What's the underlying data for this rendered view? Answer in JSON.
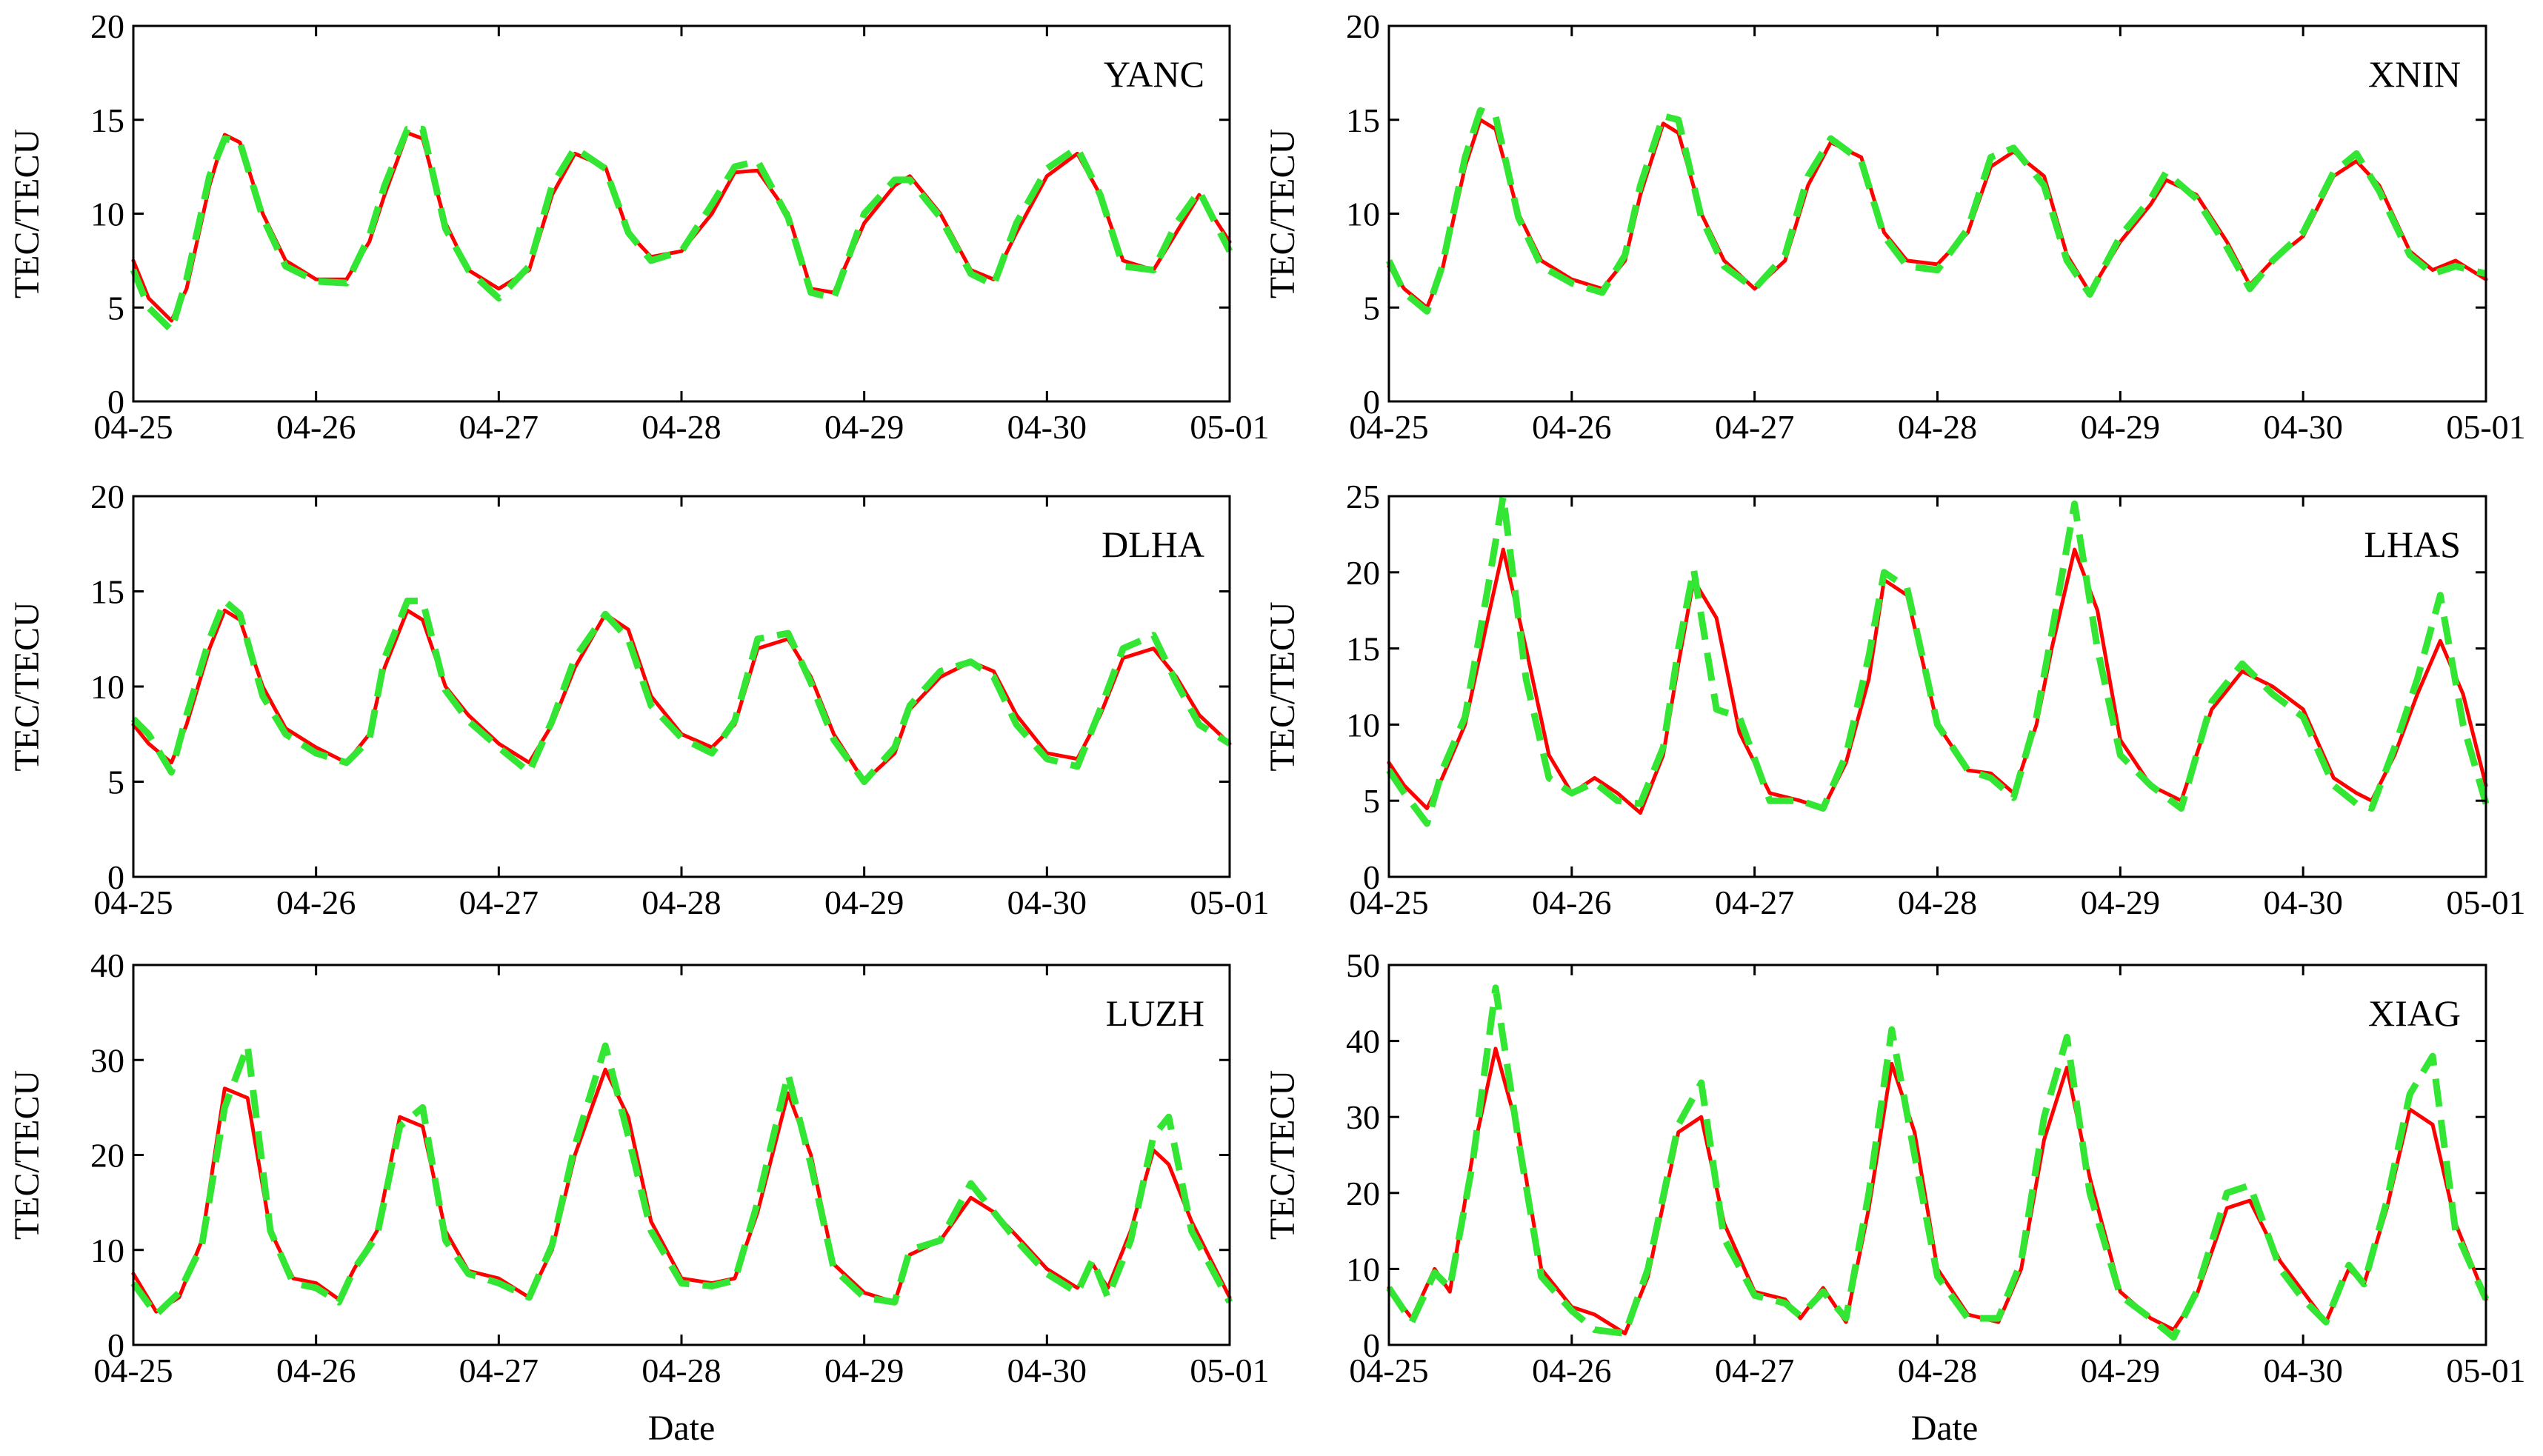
{
  "figure": {
    "colors": {
      "observed": "#ff0000",
      "model": "#33e633"
    },
    "bottom_xlabel": "Date"
  },
  "chart_data": [
    {
      "type": "line",
      "station": "YANC",
      "ylabel": "TEC/TECU",
      "x_ticks": [
        "04-25",
        "04-26",
        "04-27",
        "04-28",
        "04-29",
        "04-30",
        "05-01"
      ],
      "xlim": [
        "04-25 00:00",
        "05-01 00:00"
      ],
      "ylim": [
        0,
        20
      ],
      "y_ticks": [
        0,
        5,
        10,
        15,
        20
      ],
      "x": [
        "04-25 00:00",
        "04-25 02:00",
        "04-25 05:00",
        "04-25 07:00",
        "04-25 10:00",
        "04-25 12:00",
        "04-25 14:00",
        "04-25 17:00",
        "04-25 20:00",
        "04-26 00:00",
        "04-26 04:00",
        "04-26 07:00",
        "04-26 09:00",
        "04-26 12:00",
        "04-26 14:00",
        "04-26 17:00",
        "04-26 20:00",
        "04-27 00:00",
        "04-27 04:00",
        "04-27 07:00",
        "04-27 10:00",
        "04-27 14:00",
        "04-27 17:00",
        "04-27 20:00",
        "04-28 00:00",
        "04-28 04:00",
        "04-28 07:00",
        "04-28 10:00",
        "04-28 14:00",
        "04-28 17:00",
        "04-28 20:00",
        "04-29 00:00",
        "04-29 04:00",
        "04-29 06:00",
        "04-29 10:00",
        "04-29 14:00",
        "04-29 17:00",
        "04-29 20:00",
        "04-30 00:00",
        "04-30 04:00",
        "04-30 07:00",
        "04-30 10:00",
        "04-30 14:00",
        "04-30 17:00",
        "04-30 20:00",
        "05-01 00:00"
      ],
      "series": [
        {
          "role": "observed",
          "values": [
            7.5,
            5.5,
            4.3,
            6,
            11.5,
            14.2,
            13.8,
            10,
            7.5,
            6.5,
            6.5,
            8.5,
            11,
            14.3,
            14,
            9.5,
            7,
            6,
            7,
            11,
            13.2,
            12.5,
            9,
            7.7,
            8,
            10,
            12.2,
            12.3,
            10,
            6,
            5.8,
            9.5,
            11.5,
            12,
            10,
            7,
            6.5,
            9,
            12,
            13.2,
            11,
            7.5,
            7,
            9,
            11,
            8.5
          ]
        },
        {
          "role": "model",
          "values": [
            7,
            5,
            3.8,
            6.5,
            12,
            14,
            13.8,
            9.8,
            7.2,
            6.4,
            6.3,
            8.8,
            11.5,
            14.5,
            14.5,
            9.2,
            7,
            5.5,
            7.2,
            11.5,
            13.5,
            12.4,
            9,
            7.5,
            8,
            10.5,
            12.5,
            12.8,
            9.8,
            5.8,
            5.5,
            10,
            11.8,
            11.8,
            9.8,
            6.8,
            6.2,
            9.5,
            12.4,
            13.5,
            11,
            7.2,
            7,
            9.5,
            11.2,
            8
          ]
        }
      ]
    },
    {
      "type": "line",
      "station": "XNIN",
      "ylabel": "TEC/TECU",
      "x_ticks": [
        "04-25",
        "04-26",
        "04-27",
        "04-28",
        "04-29",
        "04-30",
        "05-01"
      ],
      "xlim": [
        "04-25 00:00",
        "05-01 00:00"
      ],
      "ylim": [
        0,
        20
      ],
      "y_ticks": [
        0,
        5,
        10,
        15,
        20
      ],
      "x": [
        "04-25 00:00",
        "04-25 02:00",
        "04-25 05:00",
        "04-25 07:00",
        "04-25 10:00",
        "04-25 12:00",
        "04-25 14:00",
        "04-25 17:00",
        "04-25 20:00",
        "04-26 00:00",
        "04-26 04:00",
        "04-26 07:00",
        "04-26 09:00",
        "04-26 12:00",
        "04-26 14:00",
        "04-26 17:00",
        "04-26 20:00",
        "04-27 00:00",
        "04-27 04:00",
        "04-27 07:00",
        "04-27 10:00",
        "04-27 14:00",
        "04-27 17:00",
        "04-27 20:00",
        "04-28 00:00",
        "04-28 04:00",
        "04-28 07:00",
        "04-28 10:00",
        "04-28 14:00",
        "04-28 17:00",
        "04-28 20:00",
        "04-29 00:00",
        "04-29 04:00",
        "04-29 06:00",
        "04-29 10:00",
        "04-29 14:00",
        "04-29 17:00",
        "04-29 20:00",
        "04-30 00:00",
        "04-30 04:00",
        "04-30 07:00",
        "04-30 10:00",
        "04-30 14:00",
        "04-30 17:00",
        "04-30 20:00",
        "05-01 00:00"
      ],
      "series": [
        {
          "role": "observed",
          "values": [
            7.2,
            6,
            5,
            7,
            12.5,
            15,
            14.5,
            10,
            7.5,
            6.5,
            6,
            7.5,
            11,
            14.8,
            14.3,
            10,
            7.5,
            6,
            7.5,
            11.5,
            13.8,
            13,
            9,
            7.5,
            7.3,
            9,
            12.5,
            13.3,
            12,
            7.8,
            5.8,
            8.5,
            10.5,
            11.8,
            11,
            8.5,
            6.2,
            7.5,
            8.8,
            12,
            12.8,
            11.5,
            8,
            7,
            7.5,
            6.5
          ]
        },
        {
          "role": "model",
          "values": [
            7.5,
            5.8,
            4.8,
            7.2,
            13,
            15.5,
            15.2,
            9.8,
            7.2,
            6.3,
            5.8,
            7.8,
            11.5,
            15.2,
            15,
            9.8,
            7.2,
            6,
            7.8,
            12,
            14,
            12.8,
            8.8,
            7.2,
            7,
            9.2,
            13,
            13.5,
            11.5,
            7.5,
            5.7,
            8.8,
            10.8,
            12.2,
            10.8,
            8.2,
            6,
            7.5,
            9,
            12.2,
            13.2,
            11.2,
            7.8,
            6.8,
            7.2,
            6.8
          ]
        }
      ]
    },
    {
      "type": "line",
      "station": "DLHA",
      "ylabel": "TEC/TECU",
      "x_ticks": [
        "04-25",
        "04-26",
        "04-27",
        "04-28",
        "04-29",
        "04-30",
        "05-01"
      ],
      "xlim": [
        "04-25 00:00",
        "05-01 00:00"
      ],
      "ylim": [
        0,
        20
      ],
      "y_ticks": [
        0,
        5,
        10,
        15,
        20
      ],
      "x": [
        "04-25 00:00",
        "04-25 02:00",
        "04-25 05:00",
        "04-25 07:00",
        "04-25 10:00",
        "04-25 12:00",
        "04-25 14:00",
        "04-25 17:00",
        "04-25 20:00",
        "04-26 00:00",
        "04-26 04:00",
        "04-26 07:00",
        "04-26 09:00",
        "04-26 12:00",
        "04-26 14:00",
        "04-26 17:00",
        "04-26 20:00",
        "04-27 00:00",
        "04-27 04:00",
        "04-27 07:00",
        "04-27 10:00",
        "04-27 14:00",
        "04-27 17:00",
        "04-27 20:00",
        "04-28 00:00",
        "04-28 04:00",
        "04-28 07:00",
        "04-28 10:00",
        "04-28 14:00",
        "04-28 17:00",
        "04-28 20:00",
        "04-29 00:00",
        "04-29 04:00",
        "04-29 06:00",
        "04-29 10:00",
        "04-29 14:00",
        "04-29 17:00",
        "04-29 20:00",
        "04-30 00:00",
        "04-30 04:00",
        "04-30 07:00",
        "04-30 10:00",
        "04-30 14:00",
        "04-30 17:00",
        "04-30 20:00",
        "05-01 00:00"
      ],
      "series": [
        {
          "role": "observed",
          "values": [
            8,
            7,
            6,
            8,
            12,
            14,
            13.5,
            10,
            7.8,
            6.8,
            6,
            7.5,
            11,
            14,
            13.5,
            10,
            8.5,
            7,
            6,
            8,
            11,
            13.8,
            13,
            9.5,
            7.5,
            6.8,
            8,
            12,
            12.5,
            10.5,
            7.5,
            5,
            6.5,
            8.8,
            10.5,
            11.3,
            10.8,
            8.5,
            6.5,
            6.2,
            8.5,
            11.5,
            12,
            10.5,
            8.5,
            7
          ]
        },
        {
          "role": "model",
          "values": [
            8.3,
            7.5,
            5.5,
            8.5,
            12.5,
            14.5,
            13.8,
            9.5,
            7.5,
            6.5,
            6,
            7.2,
            11.5,
            14.5,
            14.5,
            9.8,
            8.2,
            6.8,
            5.5,
            8.2,
            11.5,
            13.8,
            12.5,
            9,
            7.3,
            6.5,
            8.2,
            12.5,
            12.8,
            10.2,
            7.2,
            5,
            6.8,
            9,
            10.8,
            11.3,
            10.5,
            8,
            6.2,
            5.8,
            8.8,
            12,
            12.7,
            10.2,
            8,
            7
          ]
        }
      ]
    },
    {
      "type": "line",
      "station": "LHAS",
      "ylabel": "TEC/TECU",
      "x_ticks": [
        "04-25",
        "04-26",
        "04-27",
        "04-28",
        "04-29",
        "04-30",
        "05-01"
      ],
      "xlim": [
        "04-25 00:00",
        "05-01 00:00"
      ],
      "ylim": [
        0,
        25
      ],
      "y_ticks": [
        0,
        5,
        10,
        15,
        20,
        25
      ],
      "x": [
        "04-25 00:00",
        "04-25 02:00",
        "04-25 05:00",
        "04-25 07:00",
        "04-25 10:00",
        "04-25 13:00",
        "04-25 15:00",
        "04-25 18:00",
        "04-25 21:00",
        "04-26 00:00",
        "04-26 03:00",
        "04-26 06:00",
        "04-26 09:00",
        "04-26 12:00",
        "04-26 14:00",
        "04-26 16:00",
        "04-26 19:00",
        "04-26 22:00",
        "04-27 02:00",
        "04-27 06:00",
        "04-27 09:00",
        "04-27 12:00",
        "04-27 15:00",
        "04-27 17:00",
        "04-27 20:00",
        "04-28 00:00",
        "04-28 04:00",
        "04-28 07:00",
        "04-28 10:00",
        "04-28 13:00",
        "04-28 15:00",
        "04-28 18:00",
        "04-28 21:00",
        "04-29 00:00",
        "04-29 04:00",
        "04-29 08:00",
        "04-29 12:00",
        "04-29 16:00",
        "04-29 20:00",
        "04-30 00:00",
        "04-30 04:00",
        "04-30 07:00",
        "04-30 09:00",
        "04-30 12:00",
        "04-30 15:00",
        "04-30 18:00",
        "04-30 21:00",
        "05-01 00:00"
      ],
      "series": [
        {
          "role": "observed",
          "values": [
            7.5,
            6,
            4.5,
            6.5,
            10,
            17,
            21.5,
            15,
            8,
            5.5,
            6.5,
            5.5,
            4.2,
            8,
            14,
            19.5,
            17,
            9.5,
            5.5,
            5,
            4.5,
            7.5,
            13,
            19.5,
            18.5,
            10,
            7,
            6.8,
            5.5,
            10,
            15,
            21.5,
            17.5,
            9,
            6,
            5,
            11,
            13.5,
            12.5,
            11,
            6.5,
            5.5,
            5,
            8,
            12,
            15.5,
            12,
            6
          ]
        },
        {
          "role": "model",
          "values": [
            7,
            5.5,
            3.5,
            7,
            10.5,
            19,
            25,
            13,
            6.5,
            5.5,
            6.2,
            5,
            4.8,
            8.5,
            15,
            20.2,
            11,
            10.5,
            5,
            5,
            4.5,
            8,
            14.5,
            20,
            19,
            10,
            7,
            6.5,
            5.2,
            10.5,
            16,
            24.5,
            15,
            8,
            6,
            4.5,
            11.5,
            14,
            12,
            10.5,
            6,
            4.8,
            4.5,
            8.5,
            13,
            18.5,
            10,
            4.8
          ]
        }
      ]
    },
    {
      "type": "line",
      "station": "LUZH",
      "ylabel": "TEC/TECU",
      "x_ticks": [
        "04-25",
        "04-26",
        "04-27",
        "04-28",
        "04-29",
        "04-30",
        "05-01"
      ],
      "xlim": [
        "04-25 00:00",
        "05-01 00:00"
      ],
      "ylim": [
        0,
        40
      ],
      "y_ticks": [
        0,
        10,
        20,
        30,
        40
      ],
      "x": [
        "04-25 00:00",
        "04-25 03:00",
        "04-25 06:00",
        "04-25 09:00",
        "04-25 12:00",
        "04-25 15:00",
        "04-25 18:00",
        "04-25 21:00",
        "04-26 00:00",
        "04-26 03:00",
        "04-26 05:00",
        "04-26 08:00",
        "04-26 11:00",
        "04-26 14:00",
        "04-26 17:00",
        "04-26 20:00",
        "04-27 00:00",
        "04-27 04:00",
        "04-27 07:00",
        "04-27 10:00",
        "04-27 14:00",
        "04-27 17:00",
        "04-27 20:00",
        "04-28 00:00",
        "04-28 04:00",
        "04-28 07:00",
        "04-28 10:00",
        "04-28 14:00",
        "04-28 17:00",
        "04-28 20:00",
        "04-29 00:00",
        "04-29 04:00",
        "04-29 06:00",
        "04-29 10:00",
        "04-29 14:00",
        "04-29 17:00",
        "04-29 20:00",
        "04-30 00:00",
        "04-30 04:00",
        "04-30 06:00",
        "04-30 08:00",
        "04-30 11:00",
        "04-30 14:00",
        "04-30 16:00",
        "04-30 19:00",
        "05-01 00:00"
      ],
      "series": [
        {
          "role": "observed",
          "values": [
            7.5,
            3.5,
            5,
            11,
            27,
            26,
            12,
            7,
            6.5,
            4.8,
            8,
            12,
            24,
            23,
            12,
            7.8,
            7,
            5,
            10,
            20,
            29,
            24,
            13,
            7,
            6.5,
            7,
            14,
            26.5,
            20,
            8.5,
            5.5,
            4.5,
            9.5,
            11,
            15.5,
            14,
            11.5,
            8,
            6,
            8.5,
            6,
            12,
            20.5,
            19,
            13,
            5
          ]
        },
        {
          "role": "model",
          "values": [
            6.5,
            3.2,
            5.5,
            10.5,
            25,
            31.5,
            12,
            6.5,
            6,
            4.5,
            8,
            11.5,
            23,
            25,
            11,
            7.5,
            6.5,
            5,
            10.5,
            21,
            31.5,
            22,
            12,
            6.5,
            6.2,
            6.8,
            15,
            28.5,
            19,
            8,
            5,
            4.5,
            10,
            11,
            17,
            14,
            11,
            7.5,
            5.5,
            9,
            5,
            11,
            22,
            24,
            12,
            4.5
          ]
        }
      ]
    },
    {
      "type": "line",
      "station": "XIAG",
      "ylabel": "TEC/TECU",
      "x_ticks": [
        "04-25",
        "04-26",
        "04-27",
        "04-28",
        "04-29",
        "04-30",
        "05-01"
      ],
      "xlim": [
        "04-25 00:00",
        "05-01 00:00"
      ],
      "ylim": [
        0,
        50
      ],
      "y_ticks": [
        0,
        10,
        20,
        30,
        40,
        50
      ],
      "x": [
        "04-25 00:00",
        "04-25 03:00",
        "04-25 06:00",
        "04-25 08:00",
        "04-25 11:00",
        "04-25 14:00",
        "04-25 17:00",
        "04-25 20:00",
        "04-26 00:00",
        "04-26 03:00",
        "04-26 07:00",
        "04-26 10:00",
        "04-26 14:00",
        "04-26 17:00",
        "04-26 20:00",
        "04-27 00:00",
        "04-27 04:00",
        "04-27 06:00",
        "04-27 09:00",
        "04-27 12:00",
        "04-27 15:00",
        "04-27 18:00",
        "04-27 21:00",
        "04-28 00:00",
        "04-28 04:00",
        "04-28 08:00",
        "04-28 11:00",
        "04-28 14:00",
        "04-28 17:00",
        "04-28 20:00",
        "04-29 00:00",
        "04-29 04:00",
        "04-29 07:00",
        "04-29 10:00",
        "04-29 14:00",
        "04-29 17:00",
        "04-29 21:00",
        "04-30 00:00",
        "04-30 03:00",
        "04-30 06:00",
        "04-30 08:00",
        "04-30 11:00",
        "04-30 14:00",
        "04-30 17:00",
        "04-30 20:00",
        "05-01 00:00"
      ],
      "series": [
        {
          "role": "observed",
          "values": [
            7.5,
            3.5,
            10,
            7,
            25,
            39,
            28,
            10,
            5,
            4,
            1.5,
            9,
            28,
            30,
            16,
            7,
            6,
            3.5,
            7.5,
            3,
            18,
            37,
            28,
            10,
            4,
            3,
            10,
            27,
            36.5,
            22,
            7,
            3.5,
            2,
            6.5,
            18,
            19,
            11,
            7,
            3,
            10,
            8,
            18,
            31,
            29,
            16,
            6
          ]
        },
        {
          "role": "model",
          "values": [
            7.5,
            3,
            9.5,
            7.5,
            24,
            47,
            27,
            9,
            4.5,
            2,
            1.5,
            10,
            29,
            34.5,
            14,
            6.5,
            5.5,
            3.8,
            7,
            3.5,
            20,
            41.5,
            25,
            9,
            3.5,
            3.5,
            11,
            30,
            40.5,
            20,
            6.5,
            3.5,
            1,
            7,
            20,
            21,
            10,
            6,
            3,
            10.5,
            8,
            19,
            33,
            38,
            15,
            6
          ]
        }
      ]
    }
  ]
}
